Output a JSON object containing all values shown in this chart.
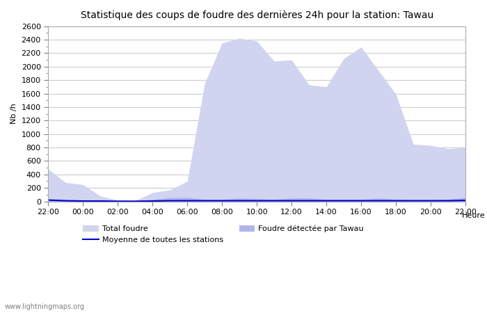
{
  "title": "Statistique des coups de foudre des dernières 24h pour la station: Tawau",
  "xlabel": "Heure",
  "ylabel": "Nb /h",
  "watermark": "www.lightningmaps.org",
  "ylim": [
    0,
    2600
  ],
  "yticks": [
    0,
    200,
    400,
    600,
    800,
    1000,
    1200,
    1400,
    1600,
    1800,
    2000,
    2200,
    2400,
    2600
  ],
  "xtick_labels": [
    "22:00",
    "00:00",
    "02:00",
    "04:00",
    "06:00",
    "08:00",
    "10:00",
    "12:00",
    "14:00",
    "16:00",
    "18:00",
    "20:00",
    "22:00"
  ],
  "legend_labels": [
    "Total foudre",
    "Moyenne de toutes les stations",
    "Foudre détectée par Tawau"
  ],
  "color_total": "#d0d4f0",
  "color_detected": "#b0b4e8",
  "color_moyenne": "#0000cc",
  "background": "#ffffff",
  "x_hours": [
    22,
    23,
    24,
    25,
    26,
    27,
    28,
    29,
    30,
    31,
    32,
    33,
    34,
    35,
    36,
    37,
    38,
    39,
    40,
    41,
    42,
    43,
    44,
    45,
    46
  ],
  "total_foudre": [
    480,
    280,
    250,
    80,
    20,
    10,
    130,
    170,
    300,
    1750,
    2350,
    2420,
    2380,
    2080,
    2100,
    1730,
    1700,
    2120,
    2290,
    1940,
    1590,
    850,
    830,
    780,
    800
  ],
  "detected_tawau": [
    20,
    10,
    8,
    5,
    2,
    2,
    30,
    55,
    60,
    30,
    30,
    50,
    40,
    30,
    50,
    50,
    30,
    30,
    30,
    50,
    30,
    15,
    20,
    30,
    60
  ],
  "moyenne": [
    20,
    10,
    5,
    5,
    2,
    2,
    5,
    10,
    10,
    10,
    10,
    10,
    10,
    10,
    10,
    10,
    10,
    10,
    10,
    10,
    10,
    10,
    10,
    10,
    15
  ]
}
